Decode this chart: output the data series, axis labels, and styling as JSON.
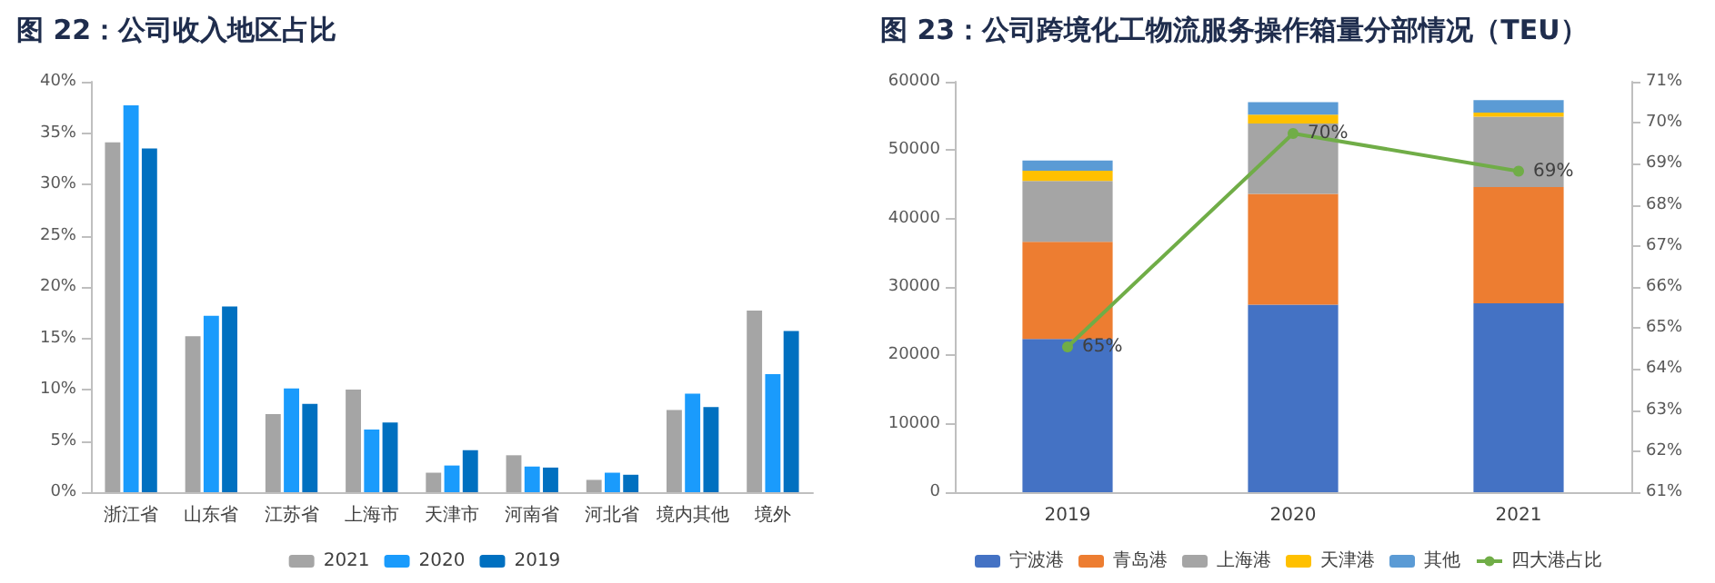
{
  "chart_data": [
    {
      "type": "bar",
      "title": "图 22：公司收入地区占比",
      "categories": [
        "浙江省",
        "山东省",
        "江苏省",
        "上海市",
        "天津市",
        "河南省",
        "河北省",
        "境内其他",
        "境外"
      ],
      "series": [
        {
          "name": "2021",
          "color": "#a5a5a5",
          "values": [
            34.1,
            15.2,
            7.6,
            10.0,
            1.9,
            3.6,
            1.2,
            8.0,
            17.7
          ]
        },
        {
          "name": "2020",
          "color": "#1a9bfc",
          "values": [
            37.7,
            17.2,
            10.1,
            6.1,
            2.6,
            2.5,
            1.9,
            9.6,
            11.5
          ]
        },
        {
          "name": "2019",
          "color": "#0070c0",
          "values": [
            33.5,
            18.1,
            8.6,
            6.8,
            4.1,
            2.4,
            1.7,
            8.3,
            15.7
          ]
        }
      ],
      "ylim": [
        0,
        40
      ],
      "yticks": [
        {
          "value": 0,
          "label": "0%"
        },
        {
          "value": 5,
          "label": "5%"
        },
        {
          "value": 10,
          "label": "10%"
        },
        {
          "value": 15,
          "label": "15%"
        },
        {
          "value": 20,
          "label": "20%"
        },
        {
          "value": 25,
          "label": "25%"
        },
        {
          "value": 30,
          "label": "30%"
        },
        {
          "value": 35,
          "label": "35%"
        },
        {
          "value": 40,
          "label": "40%"
        }
      ],
      "legend": "bottom"
    },
    {
      "type": "bar",
      "title": "图 23：公司跨境化工物流服务操作箱量分部情况（TEU）",
      "stacked": true,
      "categories": [
        "2019",
        "2020",
        "2021"
      ],
      "series": [
        {
          "name": "宁波港",
          "color": "#4472c4",
          "values": [
            22400,
            27400,
            27600
          ]
        },
        {
          "name": "青岛港",
          "color": "#ed7d31",
          "values": [
            14200,
            16200,
            17000
          ]
        },
        {
          "name": "上海港",
          "color": "#a5a5a5",
          "values": [
            8900,
            10300,
            10300
          ]
        },
        {
          "name": "天津港",
          "color": "#ffc000",
          "values": [
            1500,
            1300,
            600
          ]
        },
        {
          "name": "其他",
          "color": "#5b9bd5",
          "values": [
            1500,
            1800,
            1800
          ]
        },
        {
          "name": "四大港占比",
          "type": "line",
          "axis": "y2",
          "marker": "circle",
          "color": "#70ad47",
          "values": [
            64.54,
            69.74,
            68.82
          ],
          "value_labels": [
            "65%",
            "70%",
            "69%"
          ]
        }
      ],
      "ylim": [
        0,
        60000
      ],
      "yticks": [
        0,
        10000,
        20000,
        30000,
        40000,
        50000,
        60000
      ],
      "y2lim": [
        61,
        71
      ],
      "y2ticks": [
        {
          "value": 61,
          "label": "61%"
        },
        {
          "value": 62,
          "label": "62%"
        },
        {
          "value": 63,
          "label": "63%"
        },
        {
          "value": 64,
          "label": "64%"
        },
        {
          "value": 65,
          "label": "65%"
        },
        {
          "value": 66,
          "label": "66%"
        },
        {
          "value": 67,
          "label": "67%"
        },
        {
          "value": 68,
          "label": "68%"
        },
        {
          "value": 69,
          "label": "69%"
        },
        {
          "value": 70,
          "label": "70%"
        },
        {
          "value": 71,
          "label": "71%"
        }
      ],
      "legend": "bottom"
    }
  ]
}
